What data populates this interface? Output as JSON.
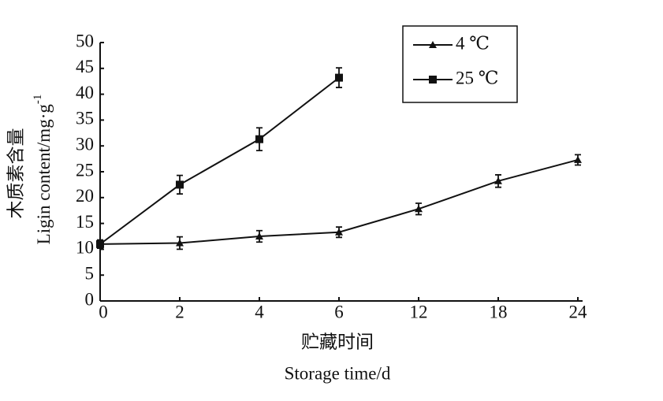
{
  "chart_data": {
    "type": "line",
    "ylabel": [
      "木质素含量",
      "Ligin content/mg·g"
    ],
    "ylabel_superscript": "-1",
    "xlabel": [
      "贮藏时间",
      "Storage time/d"
    ],
    "categories": [
      0,
      2,
      4,
      6,
      12,
      18,
      24
    ],
    "series": [
      {
        "name": "4 ℃",
        "color": "#111111",
        "marker": "triangle",
        "values": [
          11,
          11.2,
          12.5,
          13.3,
          17.8,
          23.2,
          27.3
        ],
        "errors": [
          0.8,
          1.2,
          1.1,
          1.0,
          1.1,
          1.2,
          1.0
        ]
      },
      {
        "name": "25 ℃",
        "color": "#111111",
        "marker": "square",
        "values": [
          11,
          22.5,
          31.3,
          43.2,
          null,
          null,
          null
        ],
        "errors": [
          0.8,
          1.8,
          2.2,
          1.9,
          null,
          null,
          null
        ]
      }
    ],
    "ylim": [
      0,
      50
    ],
    "yticks": [
      0,
      5,
      10,
      15,
      20,
      25,
      30,
      35,
      40,
      45,
      50
    ],
    "legend": "upper-right"
  }
}
